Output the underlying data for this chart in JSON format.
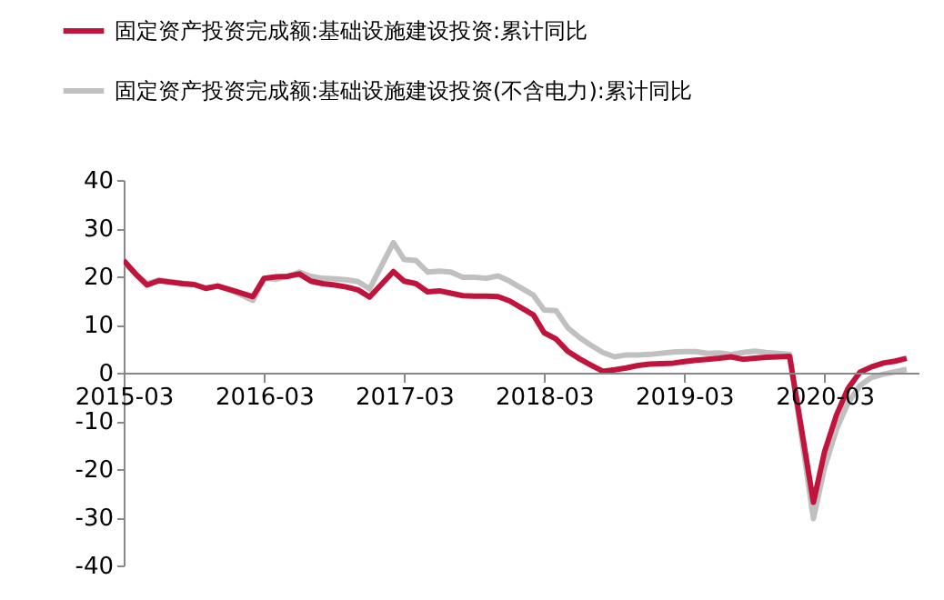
{
  "chart_data": {
    "type": "line",
    "x": [
      "2015-03",
      "2015-04",
      "2015-05",
      "2015-06",
      "2015-07",
      "2015-08",
      "2015-09",
      "2015-10",
      "2015-11",
      "2015-12",
      "2016-02",
      "2016-03",
      "2016-04",
      "2016-05",
      "2016-06",
      "2016-07",
      "2016-08",
      "2016-09",
      "2016-10",
      "2016-11",
      "2016-12",
      "2017-02",
      "2017-03",
      "2017-04",
      "2017-05",
      "2017-06",
      "2017-07",
      "2017-08",
      "2017-09",
      "2017-10",
      "2017-11",
      "2017-12",
      "2018-02",
      "2018-03",
      "2018-04",
      "2018-05",
      "2018-06",
      "2018-07",
      "2018-08",
      "2018-09",
      "2018-10",
      "2018-11",
      "2018-12",
      "2019-02",
      "2019-03",
      "2019-04",
      "2019-05",
      "2019-06",
      "2019-07",
      "2019-08",
      "2019-09",
      "2019-10",
      "2019-11",
      "2019-12",
      "2020-02",
      "2020-03",
      "2020-04",
      "2020-05",
      "2020-06",
      "2020-07",
      "2020-08",
      "2020-09",
      "2020-10"
    ],
    "series": [
      {
        "name": "固定资产投资完成额:基础设施建设投资:累计同比",
        "color": "#c0143c",
        "values": [
          23.3,
          20.5,
          18.2,
          19.1,
          18.8,
          18.5,
          18.3,
          17.5,
          18.0,
          17.3,
          15.8,
          19.6,
          19.9,
          20.0,
          20.5,
          19.0,
          18.5,
          18.2,
          17.8,
          17.2,
          15.7,
          21.0,
          19.0,
          18.5,
          16.8,
          17.0,
          16.5,
          16.0,
          15.9,
          15.9,
          15.8,
          14.9,
          12.0,
          8.3,
          7.0,
          4.5,
          2.9,
          1.6,
          0.3,
          0.6,
          1.0,
          1.5,
          1.8,
          2.0,
          2.3,
          2.6,
          2.8,
          3.0,
          3.3,
          2.8,
          3.0,
          3.2,
          3.3,
          3.4,
          -26.9,
          -16.4,
          -8.8,
          -3.3,
          0.1,
          1.2,
          2.0,
          2.4,
          3.0
        ]
      },
      {
        "name": "固定资产投资完成额:基础设施建设投资(不含电力):累计同比",
        "color": "#c0c0c0",
        "values": [
          23.0,
          20.5,
          18.5,
          19.2,
          18.9,
          18.6,
          18.3,
          17.6,
          18.0,
          17.3,
          15.0,
          19.6,
          19.4,
          20.0,
          20.9,
          20.0,
          19.6,
          19.5,
          19.3,
          18.9,
          17.4,
          27.0,
          23.5,
          23.3,
          20.9,
          21.1,
          20.9,
          19.8,
          19.8,
          19.6,
          20.1,
          19.0,
          16.1,
          13.0,
          12.9,
          9.4,
          7.3,
          5.7,
          4.2,
          3.3,
          3.7,
          3.7,
          3.8,
          4.3,
          4.4,
          4.4,
          4.0,
          4.1,
          3.8,
          4.2,
          4.5,
          4.2,
          4.0,
          3.8,
          -30.3,
          -19.7,
          -11.8,
          -6.3,
          -2.7,
          -1.0,
          -0.3,
          0.2,
          0.7
        ]
      }
    ],
    "xlim": [
      "2015-03",
      "2020-11"
    ],
    "xticks": [
      "2015-03",
      "2016-03",
      "2017-03",
      "2018-03",
      "2019-03",
      "2020-03"
    ],
    "ylim": [
      -40,
      40
    ],
    "yticks": [
      -40,
      -30,
      -20,
      -10,
      0,
      10,
      20,
      30,
      40
    ],
    "legend": "top left",
    "grid": false
  }
}
